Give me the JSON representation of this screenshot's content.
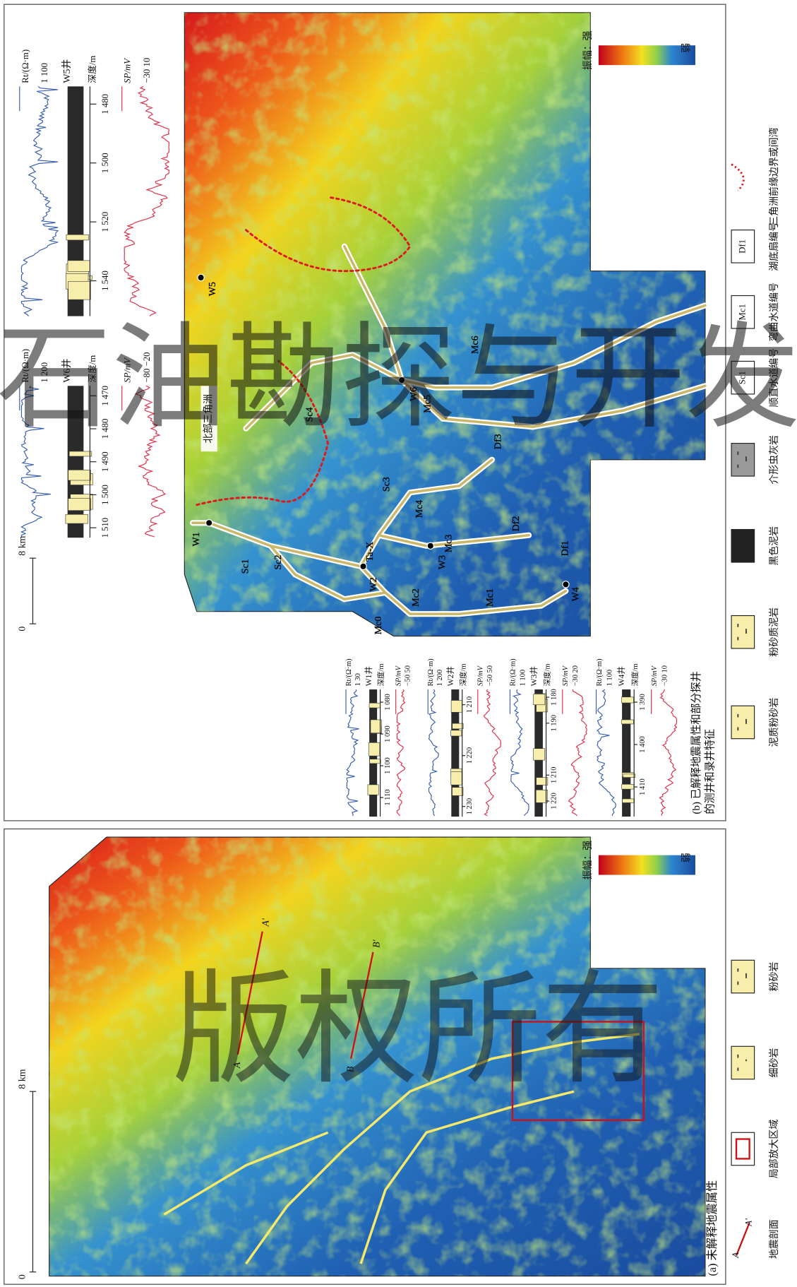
{
  "watermarks": [
    "石油勘探与开发",
    "版权所有"
  ],
  "panel_a": {
    "caption": "(a) 未解释地震属性",
    "scale": {
      "zero": "0",
      "length": "8 km"
    },
    "amplitude": {
      "strong": "振幅：强",
      "weak": "弱"
    },
    "profiles": [
      {
        "start": "A",
        "end": "A'"
      },
      {
        "start": "B",
        "end": "B'"
      }
    ]
  },
  "panel_b": {
    "caption": [
      "(b) 已解释地震属性和部分探井",
      "的测井和录井特征"
    ],
    "scale": {
      "zero": "0",
      "length": "8 km"
    },
    "amplitude": {
      "strong": "振幅：强",
      "weak": "弱"
    },
    "delta": "北部三角洲",
    "wells": [
      "W1",
      "W2",
      "W3",
      "W4",
      "W5",
      "W6"
    ],
    "channels": [
      "Sc1",
      "Sc2",
      "Sc3",
      "Sc4",
      "Mc0",
      "Mc1",
      "Mc2",
      "Mc3",
      "Mc4",
      "Mc5",
      "Mc6"
    ],
    "fans": [
      "Df1",
      "Df2",
      "Df3"
    ],
    "marker": "Ta-X",
    "logs": [
      {
        "title": "W1井",
        "depth_label": "深度/m",
        "sp_label": "SP/mV",
        "sp_range": "−50 50",
        "rt_label": "Rt/(Ω·m)",
        "rt_range": "1 30",
        "depth_range": [
          1076,
          1116
        ],
        "depth_ticks": [
          {
            "value": 1080,
            "label": "1 080"
          },
          {
            "value": 1090,
            "label": "1 090"
          },
          {
            "value": 1100,
            "label": "1 100"
          },
          {
            "value": 1110,
            "label": "1 110"
          }
        ]
      },
      {
        "title": "W2井",
        "depth_label": "深度/m",
        "sp_label": "SP/mV",
        "sp_range": "−50 50",
        "rt_label": "Rt/(Ω·m)",
        "rt_range": "1 200",
        "depth_range": [
          1207,
          1232
        ],
        "depth_ticks": [
          {
            "value": 1210,
            "label": "1 210"
          },
          {
            "value": 1220,
            "label": "1 220"
          },
          {
            "value": 1230,
            "label": "1 230"
          }
        ]
      },
      {
        "title": "W3井",
        "depth_label": "深度/m",
        "sp_label": "SP/mV",
        "sp_range": "−30 20",
        "rt_label": "Rt/(Ω·m)",
        "rt_range": "1 100",
        "depth_range": [
          1177,
          1226
        ],
        "depth_ticks": [
          {
            "value": 1180,
            "label": "1 180"
          },
          {
            "value": 1190,
            "label": "1 190"
          },
          {
            "value": 1210,
            "label": "1 210"
          },
          {
            "value": 1220,
            "label": "1 220"
          }
        ]
      },
      {
        "title": "W4井",
        "depth_label": "深度/m",
        "sp_label": "SP/mV",
        "sp_range": "−30 10",
        "rt_label": "Rt/(Ω·m)",
        "rt_range": "1 100",
        "depth_range": [
          1387,
          1417
        ],
        "depth_ticks": [
          {
            "value": 1390,
            "label": "1 390"
          },
          {
            "value": 1400,
            "label": "1 400"
          },
          {
            "value": 1410,
            "label": "1 410"
          }
        ]
      },
      {
        "title": "W5井",
        "depth_label": "深度/m",
        "sp_label": "SP/mV",
        "sp_range": "−30 10",
        "rt_label": "Rt/(Ω·m)",
        "rt_range": "1 100",
        "depth_range": [
          1474,
          1552
        ],
        "depth_ticks": [
          {
            "value": 1480,
            "label": "1 480"
          },
          {
            "value": 1500,
            "label": "1 500"
          },
          {
            "value": 1520,
            "label": "1 520"
          },
          {
            "value": 1540,
            "label": "1 540"
          }
        ]
      },
      {
        "title": "W6井",
        "depth_label": "深度/m",
        "sp_label": "SP/mV",
        "sp_range": "−80 −20",
        "rt_label": "Rt/(Ω·m)",
        "rt_range": "1 200",
        "depth_range": [
          1467,
          1513
        ],
        "depth_ticks": [
          {
            "value": 1470,
            "label": "1 470"
          },
          {
            "value": 1480,
            "label": "1 480"
          },
          {
            "value": 1490,
            "label": "1 490"
          },
          {
            "value": 1500,
            "label": "1 500"
          },
          {
            "value": 1510,
            "label": "1 510"
          }
        ]
      }
    ]
  },
  "legend": [
    {
      "label": "三角洲前缘边界或间湾"
    },
    {
      "label": "湖底扇编号",
      "symbol": "Df1"
    },
    {
      "label": "弯曲水道编号",
      "symbol": "Mc1"
    },
    {
      "label": "顺直水道编号",
      "symbol": "Sc1"
    },
    {
      "label": "介形虫灰岩"
    },
    {
      "label": "黑色泥岩"
    },
    {
      "label": "粉砂质泥岩"
    },
    {
      "label": "泥质粉砂岩"
    },
    {
      "label": "粉砂岩"
    },
    {
      "label": "细砂岩"
    },
    {
      "label": "局部放大区域"
    },
    {
      "label": "地震剖面",
      "symbol_start": "A",
      "symbol_end": "A'"
    }
  ]
}
